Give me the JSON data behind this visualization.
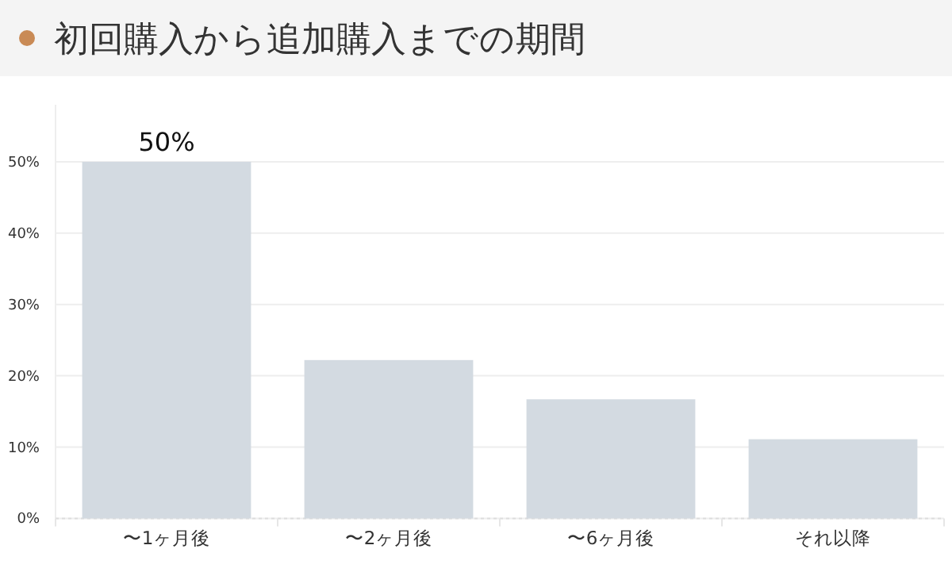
{
  "chart_data": {
    "type": "bar",
    "title": "初回購入から追加購入までの期間",
    "categories": [
      "〜1ヶ月後",
      "〜2ヶ月後",
      "〜6ヶ月後",
      "それ以降"
    ],
    "values": [
      50,
      22.2,
      16.7,
      11.1
    ],
    "value_labels": [
      "50%",
      null,
      null,
      null
    ],
    "color": "#d3dae1",
    "ylim": [
      0,
      58
    ],
    "yticks": [
      {
        "value": 0,
        "label": "0%"
      },
      {
        "value": 10,
        "label": "10%"
      },
      {
        "value": 20,
        "label": "20%"
      },
      {
        "value": 30,
        "label": "30%"
      },
      {
        "value": 40,
        "label": "40%"
      },
      {
        "value": 50,
        "label": "50%"
      }
    ],
    "grid": "y"
  }
}
